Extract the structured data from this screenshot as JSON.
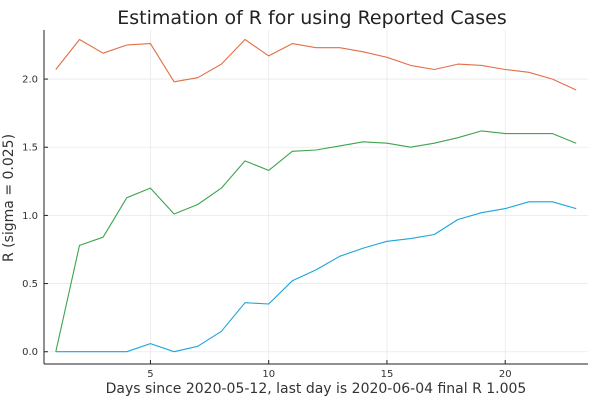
{
  "chart_data": {
    "type": "line",
    "title": "Estimation of R for            using Reported Cases",
    "xlabel": "Days since 2020-05-12, last day is 2020-06-04 final R 1.005",
    "ylabel": "R (sigma = 0.025)",
    "xlim": [
      0.5,
      23.5
    ],
    "ylim": [
      -0.09,
      2.36
    ],
    "xticks": [
      5,
      10,
      15,
      20
    ],
    "yticks": [
      0.0,
      0.5,
      1.0,
      1.5,
      2.0
    ],
    "xtick_labels": [
      "5",
      "10",
      "15",
      "20"
    ],
    "ytick_labels": [
      "0.0",
      "0.5",
      "1.0",
      "1.5",
      "2.0"
    ],
    "grid": true,
    "legend": "none",
    "x": [
      1,
      2,
      3,
      4,
      5,
      6,
      7,
      8,
      9,
      10,
      11,
      12,
      13,
      14,
      15,
      16,
      17,
      18,
      19,
      20,
      21,
      22,
      23
    ],
    "series": [
      {
        "color": "#e26f46",
        "values": [
          2.07,
          2.29,
          2.19,
          2.25,
          2.26,
          1.98,
          2.01,
          2.11,
          2.29,
          2.17,
          2.26,
          2.23,
          2.23,
          2.2,
          2.16,
          2.1,
          2.07,
          2.11,
          2.1,
          2.07,
          2.05,
          2.0,
          1.92
        ]
      },
      {
        "color": "#3ea44e",
        "values": [
          0.0,
          0.78,
          0.84,
          1.13,
          1.2,
          1.01,
          1.08,
          1.2,
          1.4,
          1.33,
          1.47,
          1.48,
          1.51,
          1.54,
          1.53,
          1.5,
          1.53,
          1.57,
          1.62,
          1.6,
          1.6,
          1.6,
          1.53
        ]
      },
      {
        "color": "#1ca4dc",
        "values": [
          0.0,
          0.0,
          0.0,
          0.0,
          0.06,
          0.0,
          0.04,
          0.15,
          0.36,
          0.35,
          0.52,
          0.6,
          0.7,
          0.76,
          0.81,
          0.83,
          0.86,
          0.97,
          1.02,
          1.05,
          1.1,
          1.1,
          1.05
        ]
      }
    ]
  }
}
